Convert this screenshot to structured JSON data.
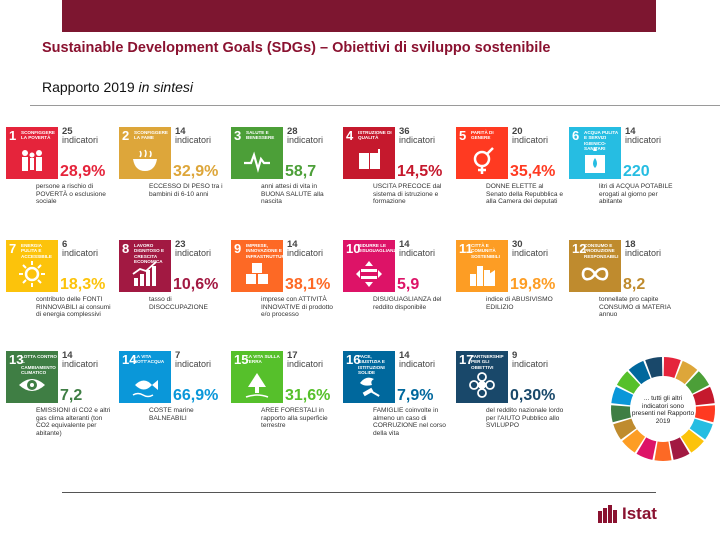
{
  "header": {
    "title": "Sustainable Development Goals (SDGs) – Obiettivi di sviluppo sostenibile",
    "subtitle_main": "Rapporto 2019",
    "subtitle_italic": "in sintesi"
  },
  "goals": [
    {
      "num": "1",
      "name": "SCONFIGGERE LA POVERTÀ",
      "count": "25",
      "count_label": "indicatori",
      "value": "28,9%",
      "desc": "persone a rischio di POVERTÀ o esclusione sociale",
      "color": "#e5243b",
      "icon": "family-icon"
    },
    {
      "num": "2",
      "name": "SCONFIGGERE LA FAME",
      "count": "14",
      "count_label": "indicatori",
      "value": "32,9%",
      "desc": "ECCESSO DI PESO tra i bambini di 6-10 anni",
      "color": "#dda63a",
      "icon": "bowl-icon"
    },
    {
      "num": "3",
      "name": "SALUTE E BENESSERE",
      "count": "28",
      "count_label": "indicatori",
      "value": "58,7",
      "desc": "anni attesi di vita in BUONA SALUTE alla nascita",
      "color": "#4c9f38",
      "icon": "heartbeat-icon"
    },
    {
      "num": "4",
      "name": "ISTRUZIONE DI QUALITÀ",
      "count": "36",
      "count_label": "indicatori",
      "value": "14,5%",
      "desc": "USCITA PRECOCE dal sistema di istruzione e formazione",
      "color": "#c5192d",
      "icon": "book-icon"
    },
    {
      "num": "5",
      "name": "PARITÀ DI GENERE",
      "count": "20",
      "count_label": "indicatori",
      "value": "35,4%",
      "desc": "DONNE ELETTE al Senato della Repubblica e alla Camera dei deputati",
      "color": "#ff3a21",
      "icon": "gender-icon"
    },
    {
      "num": "6",
      "name": "ACQUA PULITA E SERVIZI IGIENICO-SANITARI",
      "count": "14",
      "count_label": "indicatori",
      "value": "220",
      "desc": "litri di ACQUA POTABILE erogati al giorno per abitante",
      "color": "#26bde2",
      "icon": "water-icon"
    },
    {
      "num": "7",
      "name": "ENERGIA PULITA E ACCESSIBILE",
      "count": "6",
      "count_label": "indicatori",
      "value": "18,3%",
      "desc": "contributo delle FONTI RINNOVABILI ai consumi di energia complessivi",
      "color": "#fcc30b",
      "icon": "sun-icon"
    },
    {
      "num": "8",
      "name": "LAVORO DIGNITOSO E CRESCITA ECONOMICA",
      "count": "23",
      "count_label": "indicatori",
      "value": "10,6%",
      "desc": "tasso di DISOCCUPAZIONE",
      "color": "#a21942",
      "icon": "growth-chart-icon"
    },
    {
      "num": "9",
      "name": "IMPRESE, INNOVAZIONE E INFRASTRUTTURE",
      "count": "14",
      "count_label": "indicatori",
      "value": "38,1%",
      "desc": "imprese con ATTIVITÀ INNOVATIVE di prodotto e/o processo",
      "color": "#fd6925",
      "icon": "cubes-icon"
    },
    {
      "num": "10",
      "name": "RIDURRE LE DISUGUAGLIANZE",
      "count": "14",
      "count_label": "indicatori",
      "value": "5,9",
      "desc": "DISUGUAGLIANZA del reddito disponibile",
      "color": "#dd1367",
      "icon": "equality-icon"
    },
    {
      "num": "11",
      "name": "CITTÀ E COMUNITÀ SOSTENIBILI",
      "count": "30",
      "count_label": "indicatori",
      "value": "19,8%",
      "desc": "indice di ABUSIVISMO EDILIZIO",
      "color": "#fd9d24",
      "icon": "buildings-icon"
    },
    {
      "num": "12",
      "name": "CONSUMO E PRODUZIONE RESPONSABILI",
      "count": "18",
      "count_label": "indicatori",
      "value": "8,2",
      "desc": "tonnellate pro capite CONSUMO di MATERIA annuo",
      "color": "#bf8b2e",
      "icon": "infinity-icon"
    },
    {
      "num": "13",
      "name": "LOTTA CONTRO IL CAMBIAMENTO CLIMATICO",
      "count": "14",
      "count_label": "indicatori",
      "value": "7,2",
      "desc": "EMISSIONI di CO2 e altri gas clima alteranti (ton CO2 equivalente per abitante)",
      "color": "#3f7e44",
      "icon": "eye-globe-icon"
    },
    {
      "num": "14",
      "name": "LA VITA SOTT'ACQUA",
      "count": "7",
      "count_label": "indicatori",
      "value": "66,9%",
      "desc": "COSTE marine BALNEABILI",
      "color": "#0a97d9",
      "icon": "fish-icon"
    },
    {
      "num": "15",
      "name": "LA VITA SULLA TERRA",
      "count": "17",
      "count_label": "indicatori",
      "value": "31,6%",
      "desc": "AREE FORESTALI in rapporto alla superficie terrestre",
      "color": "#56c02b",
      "icon": "tree-icon"
    },
    {
      "num": "16",
      "name": "PACE, GIUSTIZIA E ISTITUZIONI SOLIDE",
      "count": "14",
      "count_label": "indicatori",
      "value": "7,9%",
      "desc": "FAMIGLIE coinvolte in almeno un caso di CORRUZIONE nel corso della vita",
      "color": "#00689d",
      "icon": "dove-gavel-icon"
    },
    {
      "num": "17",
      "name": "PARTNERSHIP PER GLI OBIETTIVI",
      "count": "9",
      "count_label": "indicatori",
      "value": "0,30%",
      "desc": "del reddito nazionale lordo per l'AIUTO Pubblico allo SVILUPPO",
      "color": "#19486a",
      "icon": "flower-icon"
    }
  ],
  "wheel": {
    "text": "... tutti gli altri indicatori sono presenti nel Rapporto 2019",
    "colors": [
      "#e5243b",
      "#dda63a",
      "#4c9f38",
      "#c5192d",
      "#ff3a21",
      "#26bde2",
      "#fcc30b",
      "#a21942",
      "#fd6925",
      "#dd1367",
      "#fd9d24",
      "#bf8b2e",
      "#3f7e44",
      "#0a97d9",
      "#56c02b",
      "#00689d",
      "#19486a"
    ]
  },
  "logo": {
    "text": "Istat",
    "color": "#8a1230"
  }
}
